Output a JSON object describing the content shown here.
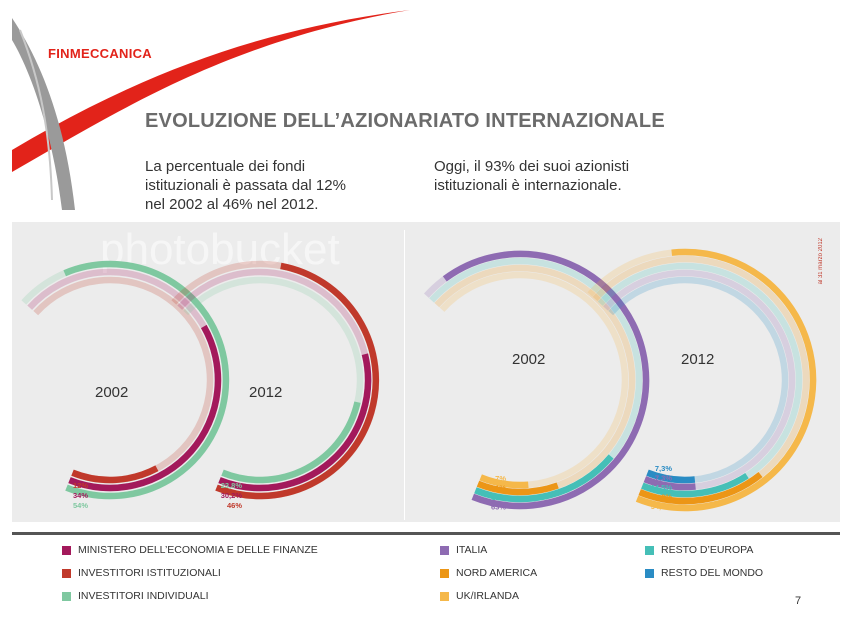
{
  "brand": {
    "logo_text": "FINMECCANICA",
    "accent": "#e2231a"
  },
  "header": {
    "title": "EVOLUZIONE DELL’AZIONARIATO INTERNAZIONALE",
    "left_lines": [
      "La percentuale dei fondi",
      "istituzionali è passata dal 12%",
      "nel 2002 al 46% nel 2012."
    ],
    "right_lines": [
      "Oggi, il 93% dei suoi azionisti",
      "istituzionali è internazionale."
    ]
  },
  "date_note": "al 31 marzo 2012",
  "watermark_text": "photobucket",
  "page_number": "7",
  "legend": [
    {
      "label": "MINISTERO DELL’ECONOMIA E DELLE FINANZE",
      "color": "#a3195b"
    },
    {
      "label": "INVESTITORI ISTITUZIONALI",
      "color": "#c0392b"
    },
    {
      "label": "INVESTITORI INDIVIDUALI",
      "color": "#7fc8a0"
    },
    {
      "label": "ITALIA",
      "color": "#8e6bb2"
    },
    {
      "label": "NORD AMERICA",
      "color": "#ec9616"
    },
    {
      "label": "UK/IRLANDA",
      "color": "#f5b84a"
    },
    {
      "label": "RESTO D’EUROPA",
      "color": "#45bfb7"
    },
    {
      "label": "RESTO DEL MONDO",
      "color": "#2a8cc4"
    }
  ],
  "chart_data": [
    {
      "type": "radial-bar",
      "group": "shareholder-type",
      "categories": [
        "2002",
        "2012"
      ],
      "series": [
        {
          "name": "MINISTERO DELL’ECONOMIA E DELLE FINANZE",
          "color": "#a3195b",
          "values": [
            34,
            30.2
          ]
        },
        {
          "name": "INVESTITORI ISTITUZIONALI",
          "color": "#c0392b",
          "values": [
            12,
            46
          ]
        },
        {
          "name": "INVESTITORI INDIVIDUALI",
          "color": "#7fc8a0",
          "values": [
            54,
            23.8
          ]
        }
      ],
      "labels": [
        [
          "12%",
          "34%",
          "54%"
        ],
        [
          "23,8%",
          "30,2%",
          "46%"
        ]
      ]
    },
    {
      "type": "radial-bar",
      "group": "institutional-investors-geography",
      "categories": [
        "2002",
        "2012"
      ],
      "series": [
        {
          "name": "ITALIA",
          "color": "#8e6bb2",
          "values": [
            63,
            7.3
          ]
        },
        {
          "name": "UK/IRLANDA",
          "color": "#f5b84a",
          "values": [
            7,
            54.9
          ]
        },
        {
          "name": "RESTO D’EUROPA",
          "color": "#45bfb7",
          "values": [
            19,
            14.5
          ]
        },
        {
          "name": "RESTO DEL MONDO",
          "color": "#2a8cc4",
          "values": [
            0,
            7.3
          ]
        },
        {
          "name": "NORD AMERICA",
          "color": "#ec9616",
          "values": [
            11,
            16
          ]
        }
      ],
      "labels": [
        [
          "7%",
          "11%",
          "19%",
          "63%"
        ],
        [
          "7,3%",
          "7,3%",
          "14,5%",
          "16,0%",
          "54,9%"
        ]
      ]
    }
  ]
}
